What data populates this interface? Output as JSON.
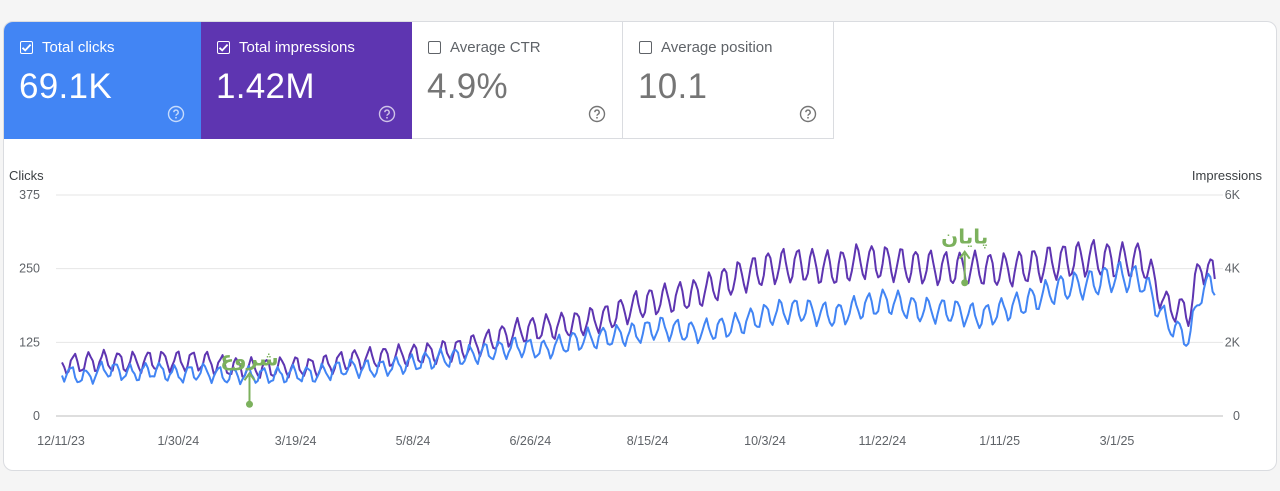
{
  "metrics": [
    {
      "label": "Total clicks",
      "value": "69.1K",
      "checked": true
    },
    {
      "label": "Total impressions",
      "value": "1.42M",
      "checked": true
    },
    {
      "label": "Average CTR",
      "value": "4.9%",
      "checked": false
    },
    {
      "label": "Average position",
      "value": "10.1",
      "checked": false
    }
  ],
  "colors": {
    "clicks": "#4285f4",
    "impressions": "#5e35b1",
    "annotation": "#7cb15d"
  },
  "icons": {
    "help": "help-circle-icon",
    "checkbox": "checkbox-icon"
  },
  "chart_data": {
    "type": "line",
    "left_axis": {
      "title": "Clicks",
      "ticks": [
        "375",
        "250",
        "125",
        "0"
      ],
      "range": [
        0,
        375
      ]
    },
    "right_axis": {
      "title": "Impressions",
      "ticks": [
        "6K",
        "4K",
        "2K",
        "0"
      ],
      "range": [
        0,
        6000
      ]
    },
    "x_tick_labels": [
      "12/11/23",
      "1/30/24",
      "3/19/24",
      "5/8/24",
      "6/26/24",
      "8/15/24",
      "10/3/24",
      "11/22/24",
      "1/11/25",
      "3/1/25"
    ],
    "x_range": [
      "2023-12-01",
      "2025-04-13"
    ],
    "grid": true,
    "series": [
      {
        "name": "Clicks",
        "axis": "left",
        "color": "#4285f4",
        "points": [
          [
            "2023-12-01",
            75
          ],
          [
            "2023-12-11",
            65
          ],
          [
            "2023-12-20",
            80
          ],
          [
            "2023-12-31",
            72
          ],
          [
            "2024-01-10",
            78
          ],
          [
            "2024-01-20",
            70
          ],
          [
            "2024-01-30",
            75
          ],
          [
            "2024-02-10",
            68
          ],
          [
            "2024-02-20",
            70
          ],
          [
            "2024-03-01",
            68
          ],
          [
            "2024-03-10",
            72
          ],
          [
            "2024-03-19",
            70
          ],
          [
            "2024-04-01",
            82
          ],
          [
            "2024-04-15",
            80
          ],
          [
            "2024-04-28",
            88
          ],
          [
            "2024-05-08",
            95
          ],
          [
            "2024-05-20",
            100
          ],
          [
            "2024-06-01",
            108
          ],
          [
            "2024-06-15",
            118
          ],
          [
            "2024-06-26",
            112
          ],
          [
            "2024-07-10",
            128
          ],
          [
            "2024-07-25",
            135
          ],
          [
            "2024-08-05",
            140
          ],
          [
            "2024-08-15",
            150
          ],
          [
            "2024-08-30",
            142
          ],
          [
            "2024-09-15",
            152
          ],
          [
            "2024-10-03",
            175
          ],
          [
            "2024-10-15",
            180
          ],
          [
            "2024-10-30",
            170
          ],
          [
            "2024-11-10",
            185
          ],
          [
            "2024-11-22",
            195
          ],
          [
            "2024-12-05",
            180
          ],
          [
            "2024-12-20",
            178
          ],
          [
            "2025-01-01",
            168
          ],
          [
            "2025-01-11",
            180
          ],
          [
            "2025-01-25",
            200
          ],
          [
            "2025-02-05",
            218
          ],
          [
            "2025-02-18",
            225
          ],
          [
            "2025-03-01",
            238
          ],
          [
            "2025-03-12",
            230
          ],
          [
            "2025-03-22",
            160
          ],
          [
            "2025-04-01",
            130
          ],
          [
            "2025-04-06",
            215
          ],
          [
            "2025-04-13",
            225
          ]
        ]
      },
      {
        "name": "Impressions",
        "axis": "right",
        "color": "#5e35b1",
        "points": [
          [
            "2023-12-01",
            1400
          ],
          [
            "2023-12-11",
            1450
          ],
          [
            "2023-12-20",
            1500
          ],
          [
            "2023-12-31",
            1450
          ],
          [
            "2024-01-10",
            1500
          ],
          [
            "2024-01-20",
            1480
          ],
          [
            "2024-01-30",
            1500
          ],
          [
            "2024-02-10",
            1350
          ],
          [
            "2024-02-20",
            1300
          ],
          [
            "2024-03-01",
            1300
          ],
          [
            "2024-03-10",
            1350
          ],
          [
            "2024-03-19",
            1320
          ],
          [
            "2024-04-01",
            1500
          ],
          [
            "2024-04-15",
            1580
          ],
          [
            "2024-04-28",
            1650
          ],
          [
            "2024-05-08",
            1700
          ],
          [
            "2024-05-20",
            1800
          ],
          [
            "2024-06-01",
            2000
          ],
          [
            "2024-06-15",
            2300
          ],
          [
            "2024-06-26",
            2400
          ],
          [
            "2024-07-10",
            2500
          ],
          [
            "2024-07-25",
            2700
          ],
          [
            "2024-08-05",
            3000
          ],
          [
            "2024-08-15",
            3150
          ],
          [
            "2024-08-30",
            3300
          ],
          [
            "2024-09-15",
            3700
          ],
          [
            "2024-10-03",
            4050
          ],
          [
            "2024-10-15",
            4100
          ],
          [
            "2024-10-30",
            4000
          ],
          [
            "2024-11-10",
            4200
          ],
          [
            "2024-11-22",
            4150
          ],
          [
            "2024-12-05",
            4050
          ],
          [
            "2024-12-20",
            4000
          ],
          [
            "2025-01-01",
            4000
          ],
          [
            "2025-01-11",
            3950
          ],
          [
            "2025-01-25",
            4100
          ],
          [
            "2025-02-05",
            4200
          ],
          [
            "2025-02-18",
            4300
          ],
          [
            "2025-03-01",
            4200
          ],
          [
            "2025-03-12",
            4250
          ],
          [
            "2025-03-22",
            3000
          ],
          [
            "2025-04-01",
            2800
          ],
          [
            "2025-04-06",
            4150
          ],
          [
            "2025-04-13",
            3700
          ]
        ]
      }
    ],
    "annotations": [
      {
        "text": "شروع",
        "date": "2024-02-20",
        "impressions": 1350
      },
      {
        "text": "پایان",
        "date": "2024-12-25",
        "impressions": 4650
      }
    ]
  }
}
